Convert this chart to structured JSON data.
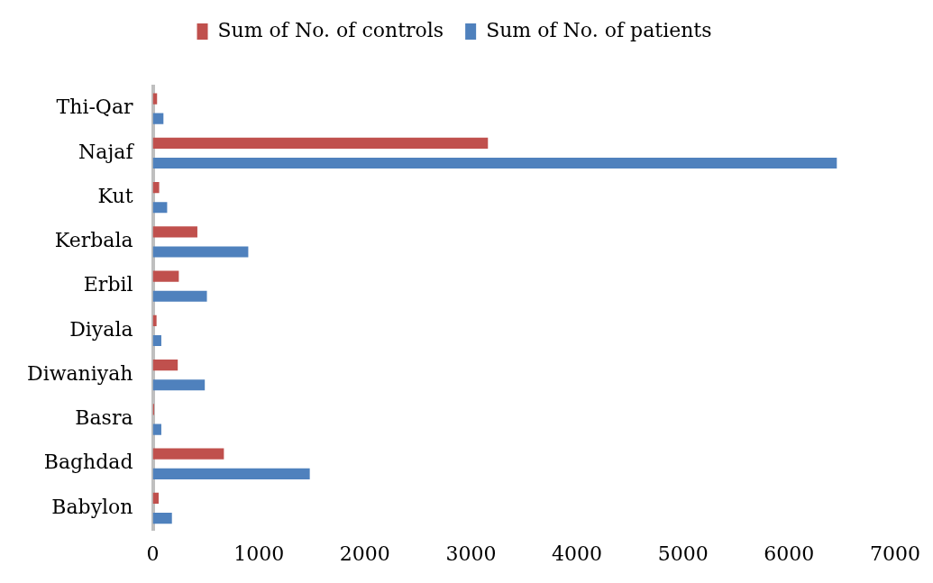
{
  "chart_data": {
    "type": "bar",
    "orientation": "horizontal",
    "categories": [
      "Thi-Qar",
      "Najaf",
      "Kut",
      "Kerbala",
      "Erbil",
      "Diyala",
      "Diwaniyah",
      "Basra",
      "Baghdad",
      "Babylon"
    ],
    "series": [
      {
        "name": "Sum of No. of controls",
        "color": "#c0504d",
        "values": [
          40,
          3160,
          60,
          420,
          245,
          35,
          235,
          12,
          670,
          55
        ]
      },
      {
        "name": "Sum of No. of patients",
        "color": "#4f81bd",
        "values": [
          100,
          6450,
          135,
          900,
          510,
          80,
          490,
          80,
          1480,
          180
        ]
      }
    ],
    "xlim": [
      0,
      7000
    ],
    "xticks": [
      0,
      1000,
      2000,
      3000,
      4000,
      5000,
      6000,
      7000
    ],
    "grid": false,
    "legend": "top"
  }
}
